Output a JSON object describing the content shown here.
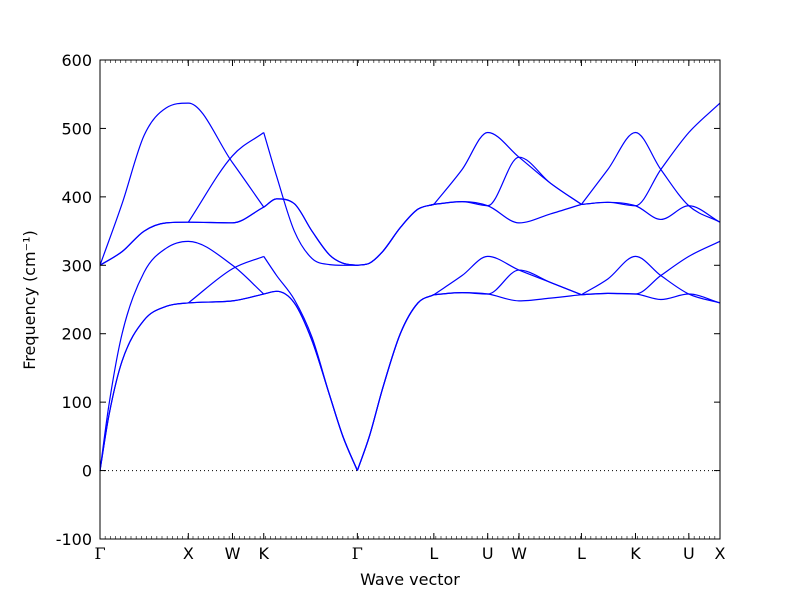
{
  "chart_data": {
    "type": "line",
    "title": "",
    "xlabel": "Wave vector",
    "ylabel": "Frequency (cm⁻¹)",
    "ylim": [
      -100,
      600
    ],
    "yticks": [
      -100,
      0,
      100,
      200,
      300,
      400,
      500,
      600
    ],
    "grid": false,
    "zero_line": {
      "y": 0,
      "style": "dotted"
    },
    "xticks": [
      {
        "label": "Γ",
        "x": 0.0
      },
      {
        "label": "X",
        "x": 1.0
      },
      {
        "label": "W",
        "x": 1.5
      },
      {
        "label": "K",
        "x": 1.854
      },
      {
        "label": "Γ",
        "x": 2.914
      },
      {
        "label": "L",
        "x": 3.78
      },
      {
        "label": "U",
        "x": 4.39
      },
      {
        "label": "W",
        "x": 4.744
      },
      {
        "label": "L",
        "x": 5.451
      },
      {
        "label": "K",
        "x": 6.063
      },
      {
        "label": "U",
        "x": 6.667
      },
      {
        "label": "X",
        "x": 7.02
      }
    ],
    "series_color": "#0000ff",
    "series": [
      {
        "x": [
          0,
          0.1,
          0.25,
          0.5,
          0.75,
          1.0,
          1.5,
          1.854
        ],
        "y": [
          0,
          80,
          160,
          220,
          240,
          245,
          248,
          258
        ]
      },
      {
        "x": [
          0,
          0.1,
          0.25,
          0.5,
          0.75,
          1.0,
          1.5,
          1.854
        ],
        "y": [
          0,
          80,
          160,
          220,
          240,
          245,
          248,
          258
        ]
      },
      {
        "x": [
          0,
          0.1,
          0.25,
          0.5,
          0.75,
          1.0,
          1.5,
          1.854
        ],
        "y": [
          0,
          95,
          200,
          290,
          325,
          335,
          300,
          258
        ]
      },
      {
        "x": [
          1.0,
          1.5,
          1.854
        ],
        "y": [
          245,
          295,
          313
        ]
      },
      {
        "x": [
          0,
          0.25,
          0.5,
          0.75,
          1.0,
          1.5,
          1.854
        ],
        "y": [
          300,
          320,
          350,
          362,
          363,
          362,
          385
        ]
      },
      {
        "x": [
          0,
          0.25,
          0.5,
          0.75,
          1.0,
          1.5,
          1.854
        ],
        "y": [
          300,
          320,
          350,
          362,
          363,
          362,
          385
        ]
      },
      {
        "x": [
          0,
          0.25,
          0.5,
          0.75,
          1.0,
          1.5,
          1.854
        ],
        "y": [
          300,
          390,
          490,
          530,
          537,
          450,
          385
        ]
      },
      {
        "x": [
          1.0,
          1.5,
          1.854
        ],
        "y": [
          363,
          460,
          494
        ]
      },
      {
        "x": [
          1.854,
          2.0,
          2.2,
          2.4,
          2.6,
          2.75,
          2.914
        ],
        "y": [
          258,
          262,
          245,
          190,
          110,
          50,
          0
        ]
      },
      {
        "x": [
          1.854,
          2.0,
          2.2,
          2.4,
          2.6,
          2.75,
          2.914
        ],
        "y": [
          258,
          262,
          245,
          190,
          110,
          50,
          0
        ]
      },
      {
        "x": [
          1.854,
          2.0,
          2.2,
          2.4,
          2.6,
          2.75,
          2.914
        ],
        "y": [
          313,
          285,
          250,
          195,
          110,
          50,
          0
        ]
      },
      {
        "x": [
          1.854,
          2.0,
          2.2,
          2.4,
          2.6,
          2.75,
          2.914
        ],
        "y": [
          385,
          397,
          390,
          350,
          315,
          303,
          300
        ]
      },
      {
        "x": [
          1.854,
          2.0,
          2.2,
          2.4,
          2.6,
          2.75,
          2.914
        ],
        "y": [
          385,
          397,
          390,
          350,
          315,
          303,
          300
        ]
      },
      {
        "x": [
          1.854,
          2.0,
          2.2,
          2.4,
          2.6,
          2.75,
          2.914
        ],
        "y": [
          494,
          430,
          350,
          310,
          301,
          300,
          300
        ]
      },
      {
        "x": [
          2.914,
          3.05,
          3.2,
          3.4,
          3.6,
          3.78
        ],
        "y": [
          0,
          50,
          120,
          200,
          245,
          257
        ]
      },
      {
        "x": [
          2.914,
          3.05,
          3.2,
          3.4,
          3.6,
          3.78
        ],
        "y": [
          0,
          50,
          120,
          200,
          245,
          257
        ]
      },
      {
        "x": [
          2.914,
          3.05,
          3.2,
          3.4,
          3.6,
          3.78
        ],
        "y": [
          0,
          50,
          120,
          200,
          245,
          257
        ]
      },
      {
        "x": [
          2.914,
          3.05,
          3.2,
          3.4,
          3.6,
          3.78
        ],
        "y": [
          300,
          303,
          320,
          355,
          382,
          389
        ]
      },
      {
        "x": [
          2.914,
          3.05,
          3.2,
          3.4,
          3.6,
          3.78
        ],
        "y": [
          300,
          303,
          320,
          355,
          382,
          389
        ]
      },
      {
        "x": [
          2.914,
          3.05,
          3.2,
          3.4,
          3.6,
          3.78
        ],
        "y": [
          300,
          303,
          320,
          355,
          382,
          389
        ]
      },
      {
        "x": [
          3.78,
          4.1,
          4.39,
          4.744,
          5.1,
          5.451
        ],
        "y": [
          257,
          260,
          258,
          248,
          252,
          257
        ]
      },
      {
        "x": [
          3.78,
          4.1,
          4.39,
          4.744,
          5.1,
          5.451
        ],
        "y": [
          257,
          260,
          258,
          293,
          275,
          257
        ]
      },
      {
        "x": [
          3.78,
          4.1,
          4.39,
          4.744,
          5.1,
          5.451
        ],
        "y": [
          257,
          285,
          313,
          293,
          275,
          257
        ]
      },
      {
        "x": [
          3.78,
          4.1,
          4.39,
          4.744,
          5.1,
          5.451
        ],
        "y": [
          389,
          393,
          387,
          362,
          375,
          389
        ]
      },
      {
        "x": [
          3.78,
          4.1,
          4.39,
          4.744,
          5.1,
          5.451
        ],
        "y": [
          389,
          393,
          387,
          458,
          420,
          389
        ]
      },
      {
        "x": [
          3.78,
          4.1,
          4.39,
          4.744,
          5.1,
          5.451
        ],
        "y": [
          389,
          440,
          494,
          458,
          420,
          389
        ]
      },
      {
        "x": [
          5.451,
          5.75,
          6.063,
          6.35,
          6.667,
          7.02
        ],
        "y": [
          257,
          259,
          258,
          250,
          258,
          245
        ]
      },
      {
        "x": [
          5.451,
          5.75,
          6.063,
          6.35,
          6.667,
          7.02
        ],
        "y": [
          257,
          259,
          258,
          285,
          313,
          335
        ]
      },
      {
        "x": [
          5.451,
          5.75,
          6.063,
          6.35,
          6.667,
          7.02
        ],
        "y": [
          257,
          280,
          313,
          285,
          258,
          245
        ]
      },
      {
        "x": [
          5.451,
          5.75,
          6.063,
          6.35,
          6.667,
          7.02
        ],
        "y": [
          389,
          392,
          387,
          367,
          387,
          363
        ]
      },
      {
        "x": [
          5.451,
          5.75,
          6.063,
          6.35,
          6.667,
          7.02
        ],
        "y": [
          389,
          392,
          387,
          440,
          494,
          537
        ]
      },
      {
        "x": [
          5.451,
          5.75,
          6.063,
          6.35,
          6.667,
          7.02
        ],
        "y": [
          389,
          440,
          494,
          440,
          387,
          363
        ]
      }
    ]
  }
}
